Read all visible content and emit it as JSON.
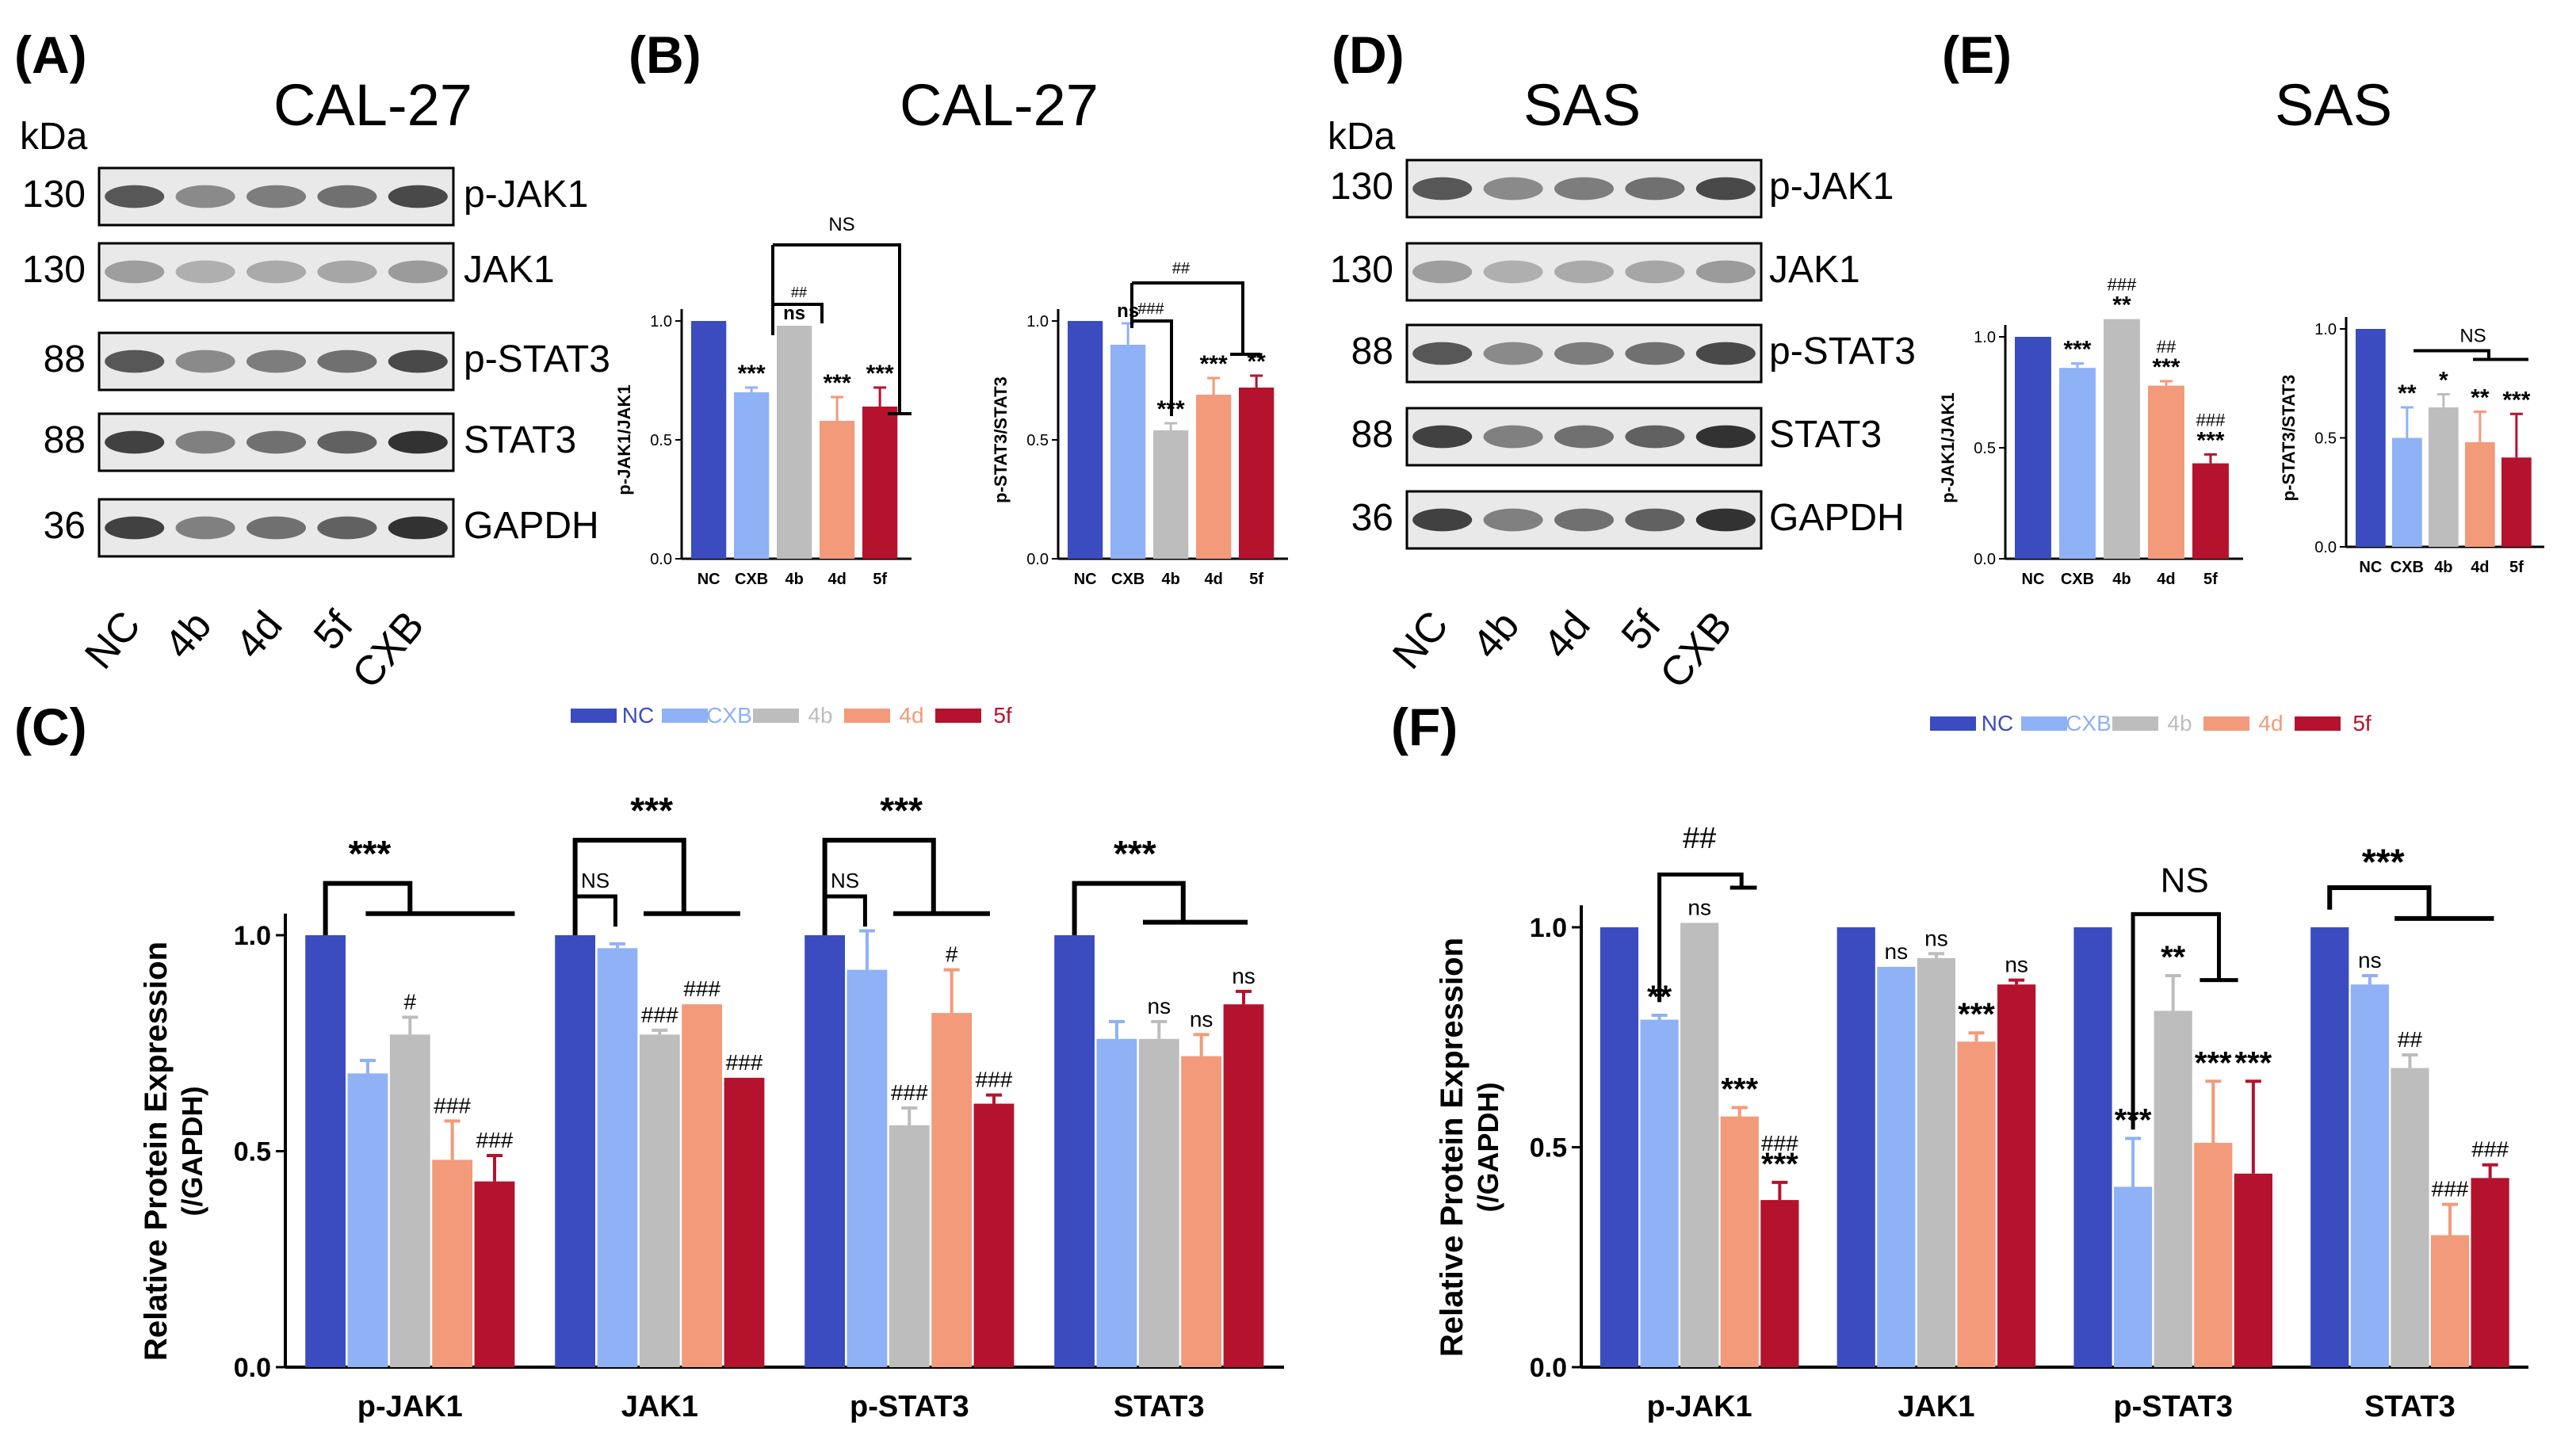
{
  "colors": {
    "NC": "#3b4cc0",
    "CXB": "#8fb1f5",
    "4b": "#bdbdbd",
    "4d": "#f29a7a",
    "5f": "#b5122e"
  },
  "panels": {
    "A": {
      "label": "(A)",
      "title": "CAL-27",
      "kda": "kDa",
      "rows": [
        {
          "mw": "130",
          "name": "p-JAK1"
        },
        {
          "mw": "130",
          "name": "JAK1"
        },
        {
          "mw": "88",
          "name": "p-STAT3"
        },
        {
          "mw": "88",
          "name": "STAT3"
        },
        {
          "mw": "36",
          "name": "GAPDH"
        }
      ],
      "lanes": [
        "NC",
        "4b",
        "4d",
        "5f",
        "CXB"
      ]
    },
    "D": {
      "label": "(D)",
      "title": "SAS",
      "kda": "kDa",
      "rows": [
        {
          "mw": "130",
          "name": "p-JAK1"
        },
        {
          "mw": "130",
          "name": "JAK1"
        },
        {
          "mw": "88",
          "name": "p-STAT3"
        },
        {
          "mw": "88",
          "name": "STAT3"
        },
        {
          "mw": "36",
          "name": "GAPDH"
        }
      ],
      "lanes": [
        "NC",
        "4b",
        "4d",
        "5f",
        "CXB"
      ]
    },
    "B": {
      "label": "(B)",
      "title": "CAL-27"
    },
    "E": {
      "label": "(E)",
      "title": "SAS"
    },
    "C": {
      "label": "(C)"
    },
    "F": {
      "label": "(F)"
    }
  },
  "chart_data": [
    {
      "id": "B1",
      "type": "bar",
      "ylabel": "p-JAK1/JAK1",
      "ylim": [
        0,
        1.0
      ],
      "yticks": [
        "0.0",
        "0.5",
        "1.0"
      ],
      "categories": [
        "NC",
        "CXB",
        "4b",
        "4d",
        "5f"
      ],
      "values": [
        1.0,
        0.7,
        0.98,
        0.58,
        0.64
      ],
      "errors": [
        0,
        0.02,
        0,
        0.1,
        0.08
      ],
      "annotations": [
        "",
        "***",
        "ns",
        "***",
        "***"
      ],
      "brackets": [
        "##",
        "NS"
      ]
    },
    {
      "id": "B2",
      "type": "bar",
      "ylabel": "p-STAT3/STAT3",
      "ylim": [
        0,
        1.0
      ],
      "yticks": [
        "0.0",
        "0.5",
        "1.0"
      ],
      "categories": [
        "NC",
        "CXB",
        "4b",
        "4d",
        "5f"
      ],
      "values": [
        1.0,
        0.9,
        0.54,
        0.69,
        0.72
      ],
      "errors": [
        0,
        0.09,
        0.03,
        0.07,
        0.05
      ],
      "annotations": [
        "",
        "ns",
        "***",
        "***",
        "**"
      ],
      "brackets": [
        "###",
        "##"
      ]
    },
    {
      "id": "E1",
      "type": "bar",
      "ylabel": "p-JAK1/JAK1",
      "ylim": [
        0,
        1.0
      ],
      "yticks": [
        "0.0",
        "0.5",
        "1.0"
      ],
      "categories": [
        "NC",
        "CXB",
        "4b",
        "4d",
        "5f"
      ],
      "values": [
        1.0,
        0.86,
        1.08,
        0.78,
        0.43
      ],
      "errors": [
        0,
        0.02,
        0,
        0.02,
        0.04
      ],
      "annotations": [
        "",
        "***",
        "**",
        "***",
        "***"
      ],
      "hash": [
        "",
        "",
        "###",
        "##",
        "###"
      ]
    },
    {
      "id": "E2",
      "type": "bar",
      "ylabel": "p-STAT3/STAT3",
      "ylim": [
        0,
        1.0
      ],
      "yticks": [
        "0.0",
        "0.5",
        "1.0"
      ],
      "categories": [
        "NC",
        "CXB",
        "4b",
        "4d",
        "5f"
      ],
      "values": [
        1.0,
        0.5,
        0.64,
        0.48,
        0.41
      ],
      "errors": [
        0,
        0.14,
        0.06,
        0.14,
        0.2
      ],
      "annotations": [
        "",
        "**",
        "*",
        "**",
        "***"
      ],
      "brackets": [
        "NS"
      ]
    },
    {
      "id": "C",
      "type": "bar",
      "ylabel": "Relative Protein Expression",
      "ylabel2": "(/GAPDH)",
      "ylim": [
        0,
        1.0
      ],
      "yticks": [
        "0.0",
        "0.5",
        "1.0"
      ],
      "categories": [
        "p-JAK1",
        "JAK1",
        "p-STAT3",
        "STAT3"
      ],
      "legend": [
        "NC",
        "CXB",
        "4b",
        "4d",
        "5f"
      ],
      "series": [
        {
          "name": "NC",
          "values": [
            1.0,
            1.0,
            1.0,
            1.0
          ],
          "errors": [
            0,
            0,
            0,
            0
          ]
        },
        {
          "name": "CXB",
          "values": [
            0.68,
            0.97,
            0.92,
            0.76
          ],
          "errors": [
            0.03,
            0.01,
            0.09,
            0.04
          ]
        },
        {
          "name": "4b",
          "values": [
            0.77,
            0.77,
            0.56,
            0.76
          ],
          "errors": [
            0.04,
            0.01,
            0.04,
            0.04
          ]
        },
        {
          "name": "4d",
          "values": [
            0.48,
            0.84,
            0.82,
            0.72
          ],
          "errors": [
            0.09,
            0,
            0.1,
            0.05
          ]
        },
        {
          "name": "5f",
          "values": [
            0.43,
            0.67,
            0.61,
            0.84
          ],
          "errors": [
            0.06,
            0,
            0.02,
            0.03
          ]
        }
      ],
      "annotations": [
        [
          "",
          "",
          "#",
          "###",
          "###"
        ],
        [
          "",
          "",
          "###",
          "###",
          "###"
        ],
        [
          "",
          "",
          "###",
          "#",
          "###"
        ],
        [
          "",
          "",
          "ns",
          "ns",
          "ns"
        ]
      ],
      "brackets": [
        [
          "***"
        ],
        [
          "NS",
          "***"
        ],
        [
          "NS",
          "***"
        ],
        [
          "***"
        ]
      ]
    },
    {
      "id": "F",
      "type": "bar",
      "ylabel": "Relative Protein Expression",
      "ylabel2": "(/GAPDH)",
      "ylim": [
        0,
        1.0
      ],
      "yticks": [
        "0.0",
        "0.5",
        "1.0"
      ],
      "categories": [
        "p-JAK1",
        "JAK1",
        "p-STAT3",
        "STAT3"
      ],
      "legend": [
        "NC",
        "CXB",
        "4b",
        "4d",
        "5f"
      ],
      "series": [
        {
          "name": "NC",
          "values": [
            1.0,
            1.0,
            1.0,
            1.0
          ],
          "errors": [
            0,
            0,
            0,
            0
          ]
        },
        {
          "name": "CXB",
          "values": [
            0.79,
            0.91,
            0.41,
            0.87
          ],
          "errors": [
            0.01,
            0,
            0.11,
            0.02
          ]
        },
        {
          "name": "4b",
          "values": [
            1.01,
            0.93,
            0.81,
            0.68
          ],
          "errors": [
            0,
            0.01,
            0.08,
            0.03
          ]
        },
        {
          "name": "4d",
          "values": [
            0.57,
            0.74,
            0.51,
            0.3
          ],
          "errors": [
            0.02,
            0.02,
            0.14,
            0.07
          ]
        },
        {
          "name": "5f",
          "values": [
            0.38,
            0.87,
            0.44,
            0.43
          ],
          "errors": [
            0.04,
            0.01,
            0.21,
            0.03
          ]
        }
      ],
      "annotations": [
        [
          "",
          "**",
          "ns",
          "***",
          "###\n***"
        ],
        [
          "",
          "ns",
          "ns",
          "***",
          "ns"
        ],
        [
          "",
          "***",
          "**",
          "***",
          "***"
        ],
        [
          "",
          "ns",
          "##",
          "###",
          "###"
        ]
      ],
      "brackets": [
        [
          "##"
        ],
        [],
        [
          "NS"
        ],
        [
          "***"
        ]
      ]
    }
  ]
}
